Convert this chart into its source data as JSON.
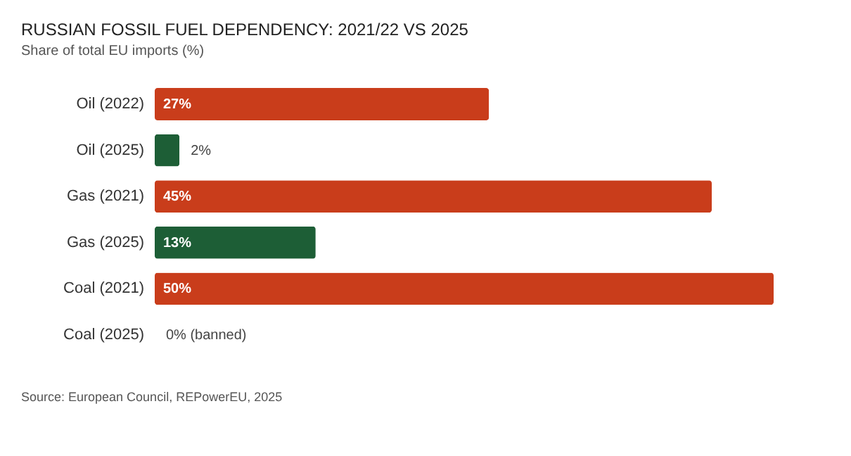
{
  "chart_data": {
    "type": "bar",
    "orientation": "horizontal",
    "title": "RUSSIAN FOSSIL FUEL DEPENDENCY:  2021/22 VS 2025",
    "subtitle": "Share of total EU imports (%)",
    "categories": [
      "Oil (2022)",
      "Oil (2025)",
      "Gas (2021)",
      "Gas (2025)",
      "Coal (2021)",
      "Coal (2025)"
    ],
    "values": [
      27,
      2,
      45,
      13,
      50,
      0
    ],
    "colors": [
      "#c93d1b",
      "#1d5e36",
      "#c93d1b",
      "#1d5e36",
      "#c93d1b",
      "#1d5e36"
    ],
    "value_labels": [
      "27%",
      "2%",
      "45%",
      "13%",
      "50%",
      "0% (banned)"
    ],
    "xlim": [
      0,
      50
    ],
    "tick_labels": "y",
    "annotations": [
      "Source: European Council, REPowerEU, 2025"
    ]
  }
}
